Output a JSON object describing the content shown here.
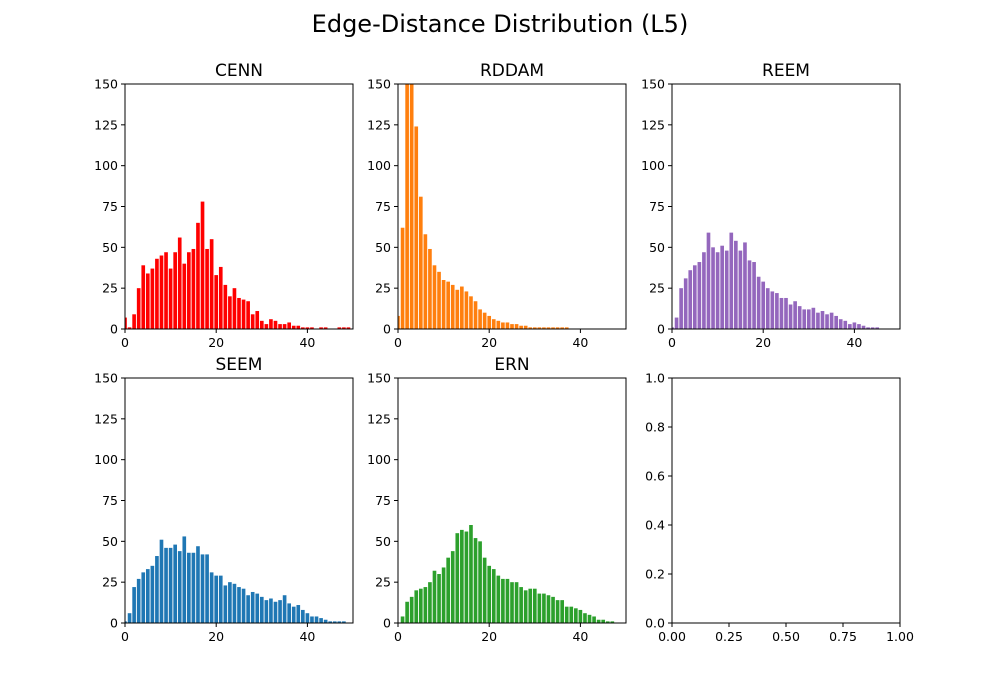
{
  "figure": {
    "title": "Edge-Distance Distribution (L5)"
  },
  "chart_data": [
    {
      "type": "bar",
      "title": "CENN",
      "color": "#ff0000",
      "xlim": [
        0,
        50
      ],
      "ylim": [
        0,
        150
      ],
      "xticks": [
        "0",
        "20",
        "40"
      ],
      "yticks": [
        "0",
        "25",
        "50",
        "75",
        "100",
        "125",
        "150"
      ],
      "x": [
        0,
        1,
        2,
        3,
        4,
        5,
        6,
        7,
        8,
        9,
        10,
        11,
        12,
        13,
        14,
        15,
        16,
        17,
        18,
        19,
        20,
        21,
        22,
        23,
        24,
        25,
        26,
        27,
        28,
        29,
        30,
        31,
        32,
        33,
        34,
        35,
        36,
        37,
        38,
        39,
        40,
        41,
        42,
        43,
        44,
        45,
        46,
        47,
        48,
        49
      ],
      "values": [
        7,
        1,
        9,
        25,
        39,
        34,
        37,
        43,
        45,
        47,
        37,
        47,
        56,
        40,
        47,
        49,
        65,
        78,
        49,
        55,
        33,
        38,
        27,
        20,
        25,
        19,
        18,
        17,
        9,
        11,
        5,
        3,
        6,
        5,
        3,
        3,
        4,
        2,
        2,
        1,
        1,
        1,
        0,
        1,
        1,
        0,
        0,
        1,
        1,
        1
      ]
    },
    {
      "type": "bar",
      "title": "RDDAM",
      "color": "#ff7f0e",
      "xlim": [
        0,
        50
      ],
      "ylim": [
        0,
        150
      ],
      "xticks": [
        "0",
        "20",
        "40"
      ],
      "yticks": [
        "0",
        "25",
        "50",
        "75",
        "100",
        "125",
        "150"
      ],
      "x": [
        0,
        1,
        2,
        3,
        4,
        5,
        6,
        7,
        8,
        9,
        10,
        11,
        12,
        13,
        14,
        15,
        16,
        17,
        18,
        19,
        20,
        21,
        22,
        23,
        24,
        25,
        26,
        27,
        28,
        29,
        30,
        31,
        32,
        33,
        34,
        35,
        36,
        37,
        38,
        39,
        40,
        41,
        42,
        43,
        44,
        45,
        46,
        47,
        48,
        49
      ],
      "values": [
        8,
        62,
        150,
        150,
        124,
        81,
        58,
        49,
        39,
        35,
        30,
        29,
        27,
        24,
        26,
        23,
        20,
        17,
        12,
        10,
        8,
        6,
        5,
        4,
        4,
        3,
        3,
        2,
        2,
        1,
        1,
        1,
        1,
        1,
        1,
        1,
        1,
        1,
        0,
        0,
        0,
        0,
        0,
        0,
        0,
        0,
        0,
        0,
        0,
        0
      ]
    },
    {
      "type": "bar",
      "title": "REEM",
      "color": "#9467bd",
      "xlim": [
        0,
        50
      ],
      "ylim": [
        0,
        150
      ],
      "xticks": [
        "0",
        "20",
        "40"
      ],
      "yticks": [
        "0",
        "25",
        "50",
        "75",
        "100",
        "125",
        "150"
      ],
      "x": [
        0,
        1,
        2,
        3,
        4,
        5,
        6,
        7,
        8,
        9,
        10,
        11,
        12,
        13,
        14,
        15,
        16,
        17,
        18,
        19,
        20,
        21,
        22,
        23,
        24,
        25,
        26,
        27,
        28,
        29,
        30,
        31,
        32,
        33,
        34,
        35,
        36,
        37,
        38,
        39,
        40,
        41,
        42,
        43,
        44,
        45,
        46,
        47,
        48,
        49
      ],
      "values": [
        1,
        7,
        25,
        31,
        36,
        39,
        41,
        47,
        59,
        50,
        47,
        51,
        48,
        59,
        54,
        48,
        53,
        42,
        41,
        32,
        29,
        25,
        23,
        22,
        19,
        19,
        15,
        17,
        14,
        12,
        12,
        13,
        10,
        11,
        9,
        10,
        8,
        6,
        5,
        3,
        4,
        3,
        2,
        1,
        1,
        1,
        0,
        0,
        0,
        0
      ]
    },
    {
      "type": "bar",
      "title": "SEEM",
      "color": "#1f77b4",
      "xlim": [
        0,
        50
      ],
      "ylim": [
        0,
        150
      ],
      "xticks": [
        "0",
        "20",
        "40"
      ],
      "yticks": [
        "0",
        "25",
        "50",
        "75",
        "100",
        "125",
        "150"
      ],
      "x": [
        0,
        1,
        2,
        3,
        4,
        5,
        6,
        7,
        8,
        9,
        10,
        11,
        12,
        13,
        14,
        15,
        16,
        17,
        18,
        19,
        20,
        21,
        22,
        23,
        24,
        25,
        26,
        27,
        28,
        29,
        30,
        31,
        32,
        33,
        34,
        35,
        36,
        37,
        38,
        39,
        40,
        41,
        42,
        43,
        44,
        45,
        46,
        47,
        48,
        49
      ],
      "values": [
        1,
        6,
        22,
        27,
        31,
        33,
        35,
        41,
        51,
        46,
        46,
        48,
        44,
        53,
        43,
        43,
        47,
        42,
        42,
        31,
        29,
        29,
        23,
        25,
        24,
        22,
        21,
        17,
        19,
        18,
        16,
        14,
        15,
        13,
        14,
        17,
        12,
        10,
        11,
        8,
        6,
        4,
        4,
        3,
        2,
        1,
        1,
        1,
        1,
        0
      ]
    },
    {
      "type": "bar",
      "title": "ERN",
      "color": "#2ca02c",
      "xlim": [
        0,
        50
      ],
      "ylim": [
        0,
        150
      ],
      "xticks": [
        "0",
        "20",
        "40"
      ],
      "yticks": [
        "0",
        "25",
        "50",
        "75",
        "100",
        "125",
        "150"
      ],
      "x": [
        0,
        1,
        2,
        3,
        4,
        5,
        6,
        7,
        8,
        9,
        10,
        11,
        12,
        13,
        14,
        15,
        16,
        17,
        18,
        19,
        20,
        21,
        22,
        23,
        24,
        25,
        26,
        27,
        28,
        29,
        30,
        31,
        32,
        33,
        34,
        35,
        36,
        37,
        38,
        39,
        40,
        41,
        42,
        43,
        44,
        45,
        46,
        47,
        48,
        49
      ],
      "values": [
        0,
        4,
        13,
        16,
        20,
        21,
        22,
        25,
        32,
        30,
        34,
        40,
        44,
        55,
        57,
        56,
        60,
        52,
        50,
        40,
        35,
        33,
        29,
        27,
        27,
        25,
        25,
        22,
        20,
        21,
        21,
        18,
        18,
        17,
        16,
        14,
        14,
        10,
        10,
        9,
        8,
        6,
        5,
        4,
        2,
        2,
        1,
        1,
        0,
        0
      ]
    },
    {
      "type": "bar",
      "title": "",
      "color": "#1f77b4",
      "xlim": [
        0,
        1
      ],
      "ylim": [
        0,
        1
      ],
      "xticks": [
        "0.00",
        "0.25",
        "0.50",
        "0.75",
        "1.00"
      ],
      "yticks": [
        "0.0",
        "0.2",
        "0.4",
        "0.6",
        "0.8",
        "1.0"
      ],
      "x": [],
      "values": []
    }
  ]
}
